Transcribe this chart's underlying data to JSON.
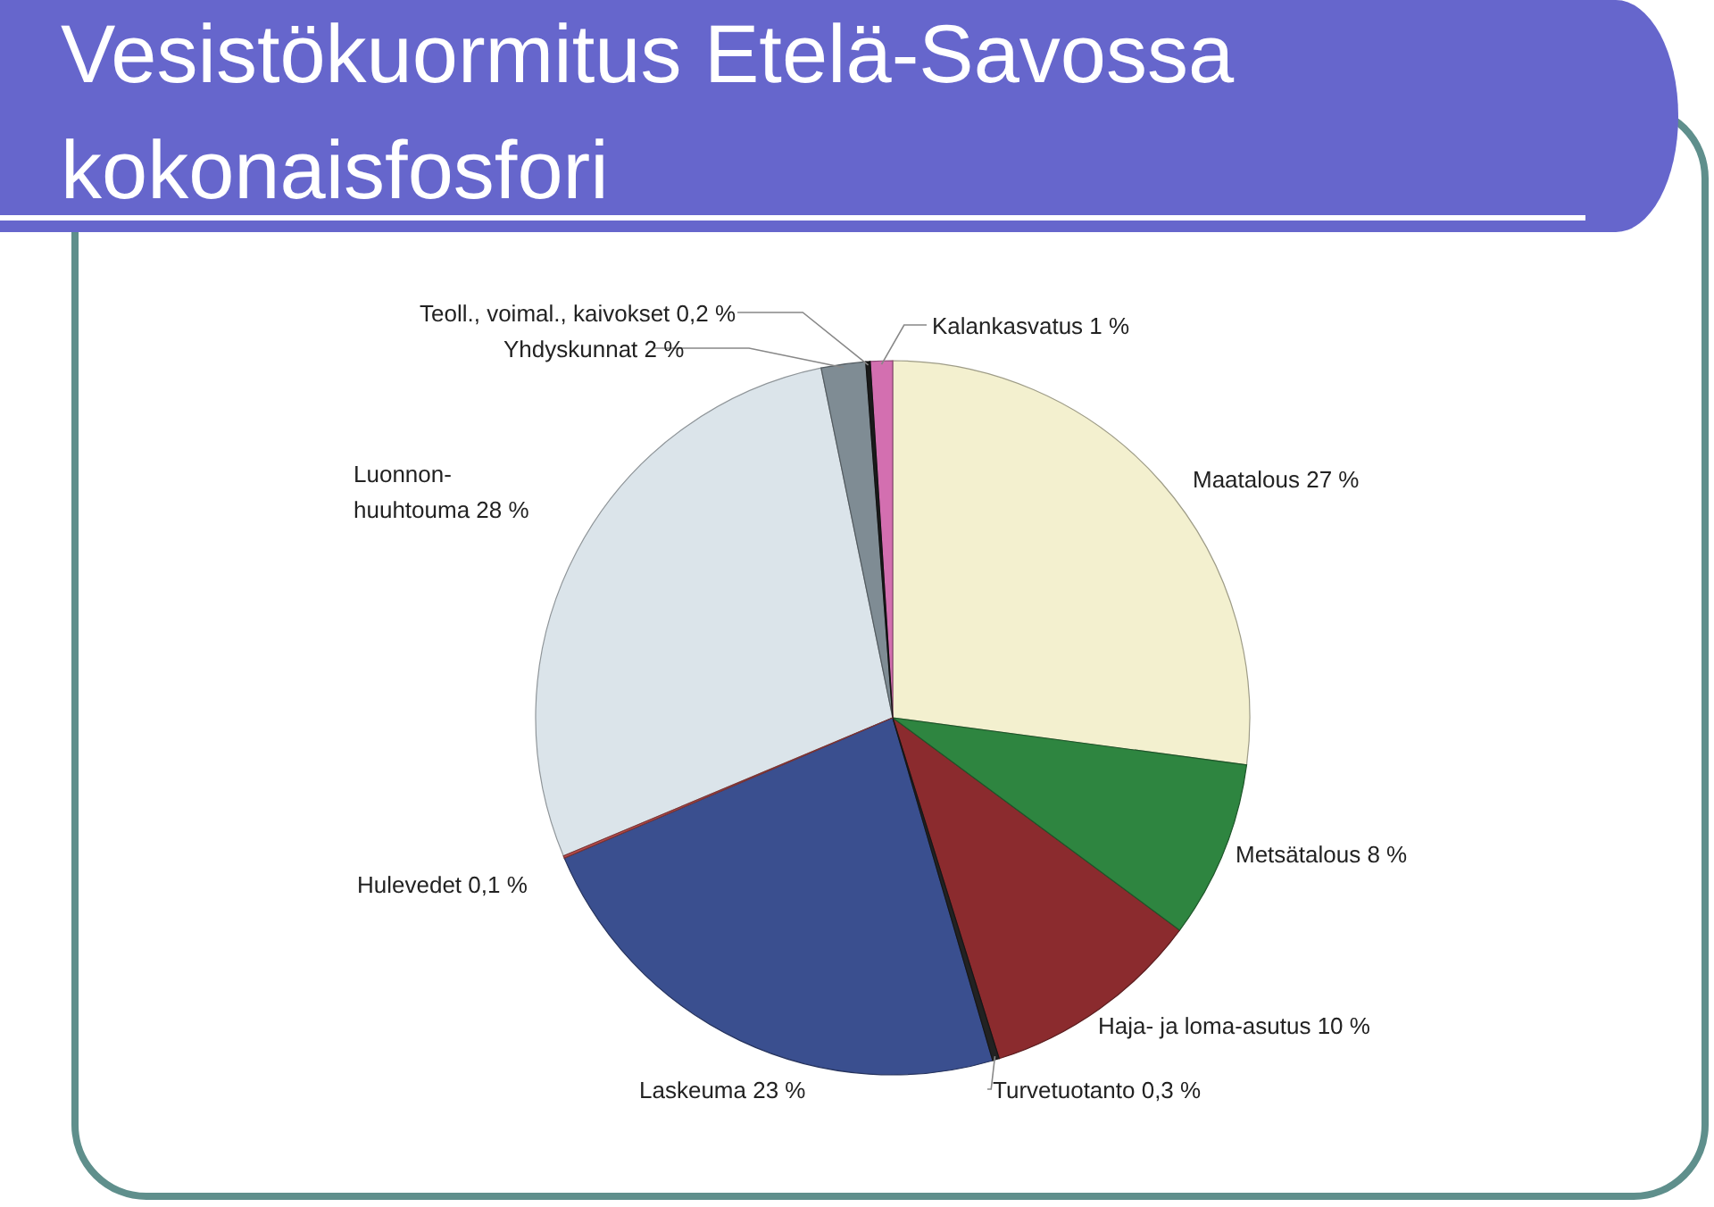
{
  "chart_data": {
    "type": "pie",
    "title": "Vesistökuormitus Etelä-Savossa",
    "subtitle": "kokonaisfosfori",
    "categories": [
      "Maatalous",
      "Metsätalous",
      "Haja- ja loma-asutus",
      "Turvetuotanto",
      "Laskeuma",
      "Hulevedet",
      "Luonnon-\nhuuhtouma",
      "Yhdyskunnat",
      "Teoll., voimal., kaivokset",
      "Kalankasvatus"
    ],
    "values": [
      27,
      8,
      10,
      0.3,
      23,
      0.1,
      28,
      2,
      0.2,
      1
    ],
    "value_labels": [
      "27 %",
      "8 %",
      "10 %",
      "0,3 %",
      "23 %",
      "0,1 %",
      "28 %",
      "2 %",
      "0,2 %",
      "1 %"
    ],
    "colors": [
      "#f3f0cf",
      "#2e8540",
      "#8b2b2e",
      "#222222",
      "#3a4f8f",
      "#c05050",
      "#dbe4ea",
      "#7f8c94",
      "#1a1a1a",
      "#d36fb0"
    ]
  }
}
